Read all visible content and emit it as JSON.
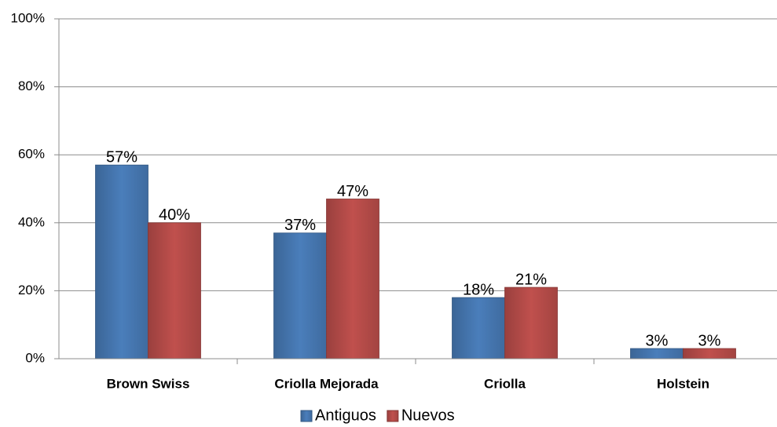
{
  "chart_data": {
    "type": "bar",
    "categories": [
      "Brown Swiss",
      "Criolla Mejorada",
      "Criolla",
      "Holstein"
    ],
    "series": [
      {
        "name": "Antiguos",
        "color": "#4a7ebb",
        "values": [
          57,
          37,
          18,
          3
        ],
        "value_labels": [
          "57%",
          "37%",
          "18%",
          "3%"
        ]
      },
      {
        "name": "Nuevos",
        "color": "#c0504d",
        "values": [
          40,
          47,
          21,
          3
        ],
        "value_labels": [
          "40%",
          "47%",
          "21%",
          "3%"
        ]
      }
    ],
    "ylim": [
      0,
      100
    ],
    "yticks": [
      {
        "value": 0,
        "label": "0%"
      },
      {
        "value": 20,
        "label": "20%"
      },
      {
        "value": 40,
        "label": "40%"
      },
      {
        "value": 60,
        "label": "60%"
      },
      {
        "value": 80,
        "label": "80%"
      },
      {
        "value": 100,
        "label": "100%"
      }
    ],
    "grid": true,
    "legend": "bottom"
  }
}
